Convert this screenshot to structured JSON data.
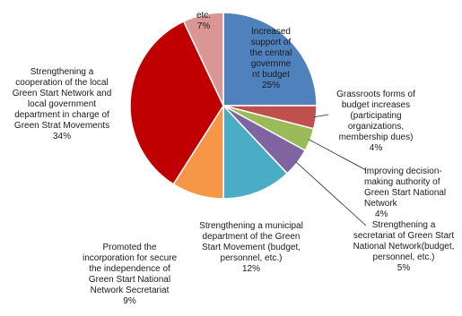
{
  "chart_data": {
    "type": "pie",
    "title": "",
    "legend": "none",
    "slices": [
      {
        "lines": [
          "Increased",
          "support of",
          "the central",
          "governme",
          "nt budget"
        ],
        "value": 25,
        "label": "25%",
        "color": "#4f81bd"
      },
      {
        "lines": [
          "Grassroots forms of",
          "budget increases",
          "(participating",
          "organizations,",
          "membership dues)"
        ],
        "value": 4,
        "label": "4%",
        "color": "#c0504d"
      },
      {
        "lines": [
          "Improving decision-",
          "making authority of",
          "Green Start National",
          "Network"
        ],
        "value": 4,
        "label": "4%",
        "color": "#9bbb59"
      },
      {
        "lines": [
          "Strengthening a",
          "secretariat of Green Start",
          "National Network(budget,",
          "personnel, etc.)"
        ],
        "value": 5,
        "label": "5%",
        "color": "#8064a2"
      },
      {
        "lines": [
          "Strengthening a municipal",
          "department of the Green",
          "Start Movement (budget,",
          "personnel, etc.)"
        ],
        "value": 12,
        "label": "12%",
        "color": "#4bacc6"
      },
      {
        "lines": [
          "Promoted the",
          "incorporation for secure",
          "the independence of",
          "Green Start National",
          "Network Secretariat"
        ],
        "value": 9,
        "label": "9%",
        "color": "#f79646"
      },
      {
        "lines": [
          "Strengthening a",
          "cooperation of the local",
          "Green Start Network and",
          "local government",
          "department in charge of",
          "Green Strat Movements"
        ],
        "value": 34,
        "label": "34%",
        "color": "#c00000"
      },
      {
        "lines": [
          "etc."
        ],
        "value": 7,
        "label": "7%",
        "color": "#d99694"
      }
    ]
  }
}
